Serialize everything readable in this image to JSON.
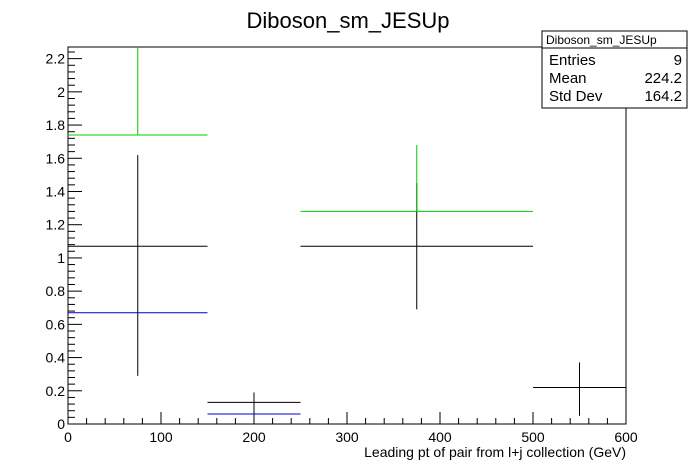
{
  "chart_data": {
    "type": "scatter",
    "title": "Diboson_sm_JESUp",
    "xlabel": "Leading pt of pair from l+j collection (GeV)",
    "ylabel": "",
    "xlim": [
      0,
      600
    ],
    "ylim": [
      0,
      2.27
    ],
    "xticks": [
      0,
      100,
      200,
      300,
      400,
      500,
      600
    ],
    "yticks": [
      0,
      0.2,
      0.4,
      0.6,
      0.8,
      1,
      1.2,
      1.4,
      1.6,
      1.8,
      2,
      2.2
    ],
    "grid": false,
    "series": [
      {
        "color": "#000000",
        "points": [
          {
            "xlo": 0,
            "xhi": 150,
            "y": 1.07,
            "ylo": 0.29,
            "yhi": 1.62
          },
          {
            "xlo": 150,
            "xhi": 250,
            "y": 0.13,
            "ylo": 0.07,
            "yhi": 0.19
          },
          {
            "xlo": 250,
            "xhi": 500,
            "y": 1.07,
            "ylo": 0.69,
            "yhi": 1.45
          },
          {
            "xlo": 500,
            "xhi": 600,
            "y": 0.22,
            "ylo": 0.05,
            "yhi": 0.37
          }
        ]
      },
      {
        "color": "#00cc00",
        "points": [
          {
            "xlo": 0,
            "xhi": 150,
            "y": 1.74,
            "ylo": 1.74,
            "yhi": 2.27
          },
          {
            "xlo": 250,
            "xhi": 500,
            "y": 1.28,
            "ylo": 1.28,
            "yhi": 1.68
          }
        ]
      },
      {
        "color": "#0000cc",
        "points": [
          {
            "xlo": 0,
            "xhi": 150,
            "y": 0.67,
            "ylo": 0.67,
            "yhi": 0.67
          },
          {
            "xlo": 150,
            "xhi": 250,
            "y": 0.06,
            "ylo": 0.06,
            "yhi": 0.06
          }
        ]
      }
    ],
    "stats_box": {
      "title": "Diboson_sm_JESUp",
      "placement": "top-right",
      "rows": [
        {
          "label": "Entries",
          "value": "9"
        },
        {
          "label": "Mean",
          "value": "224.2"
        },
        {
          "label": "Std Dev",
          "value": "164.2"
        }
      ]
    }
  }
}
